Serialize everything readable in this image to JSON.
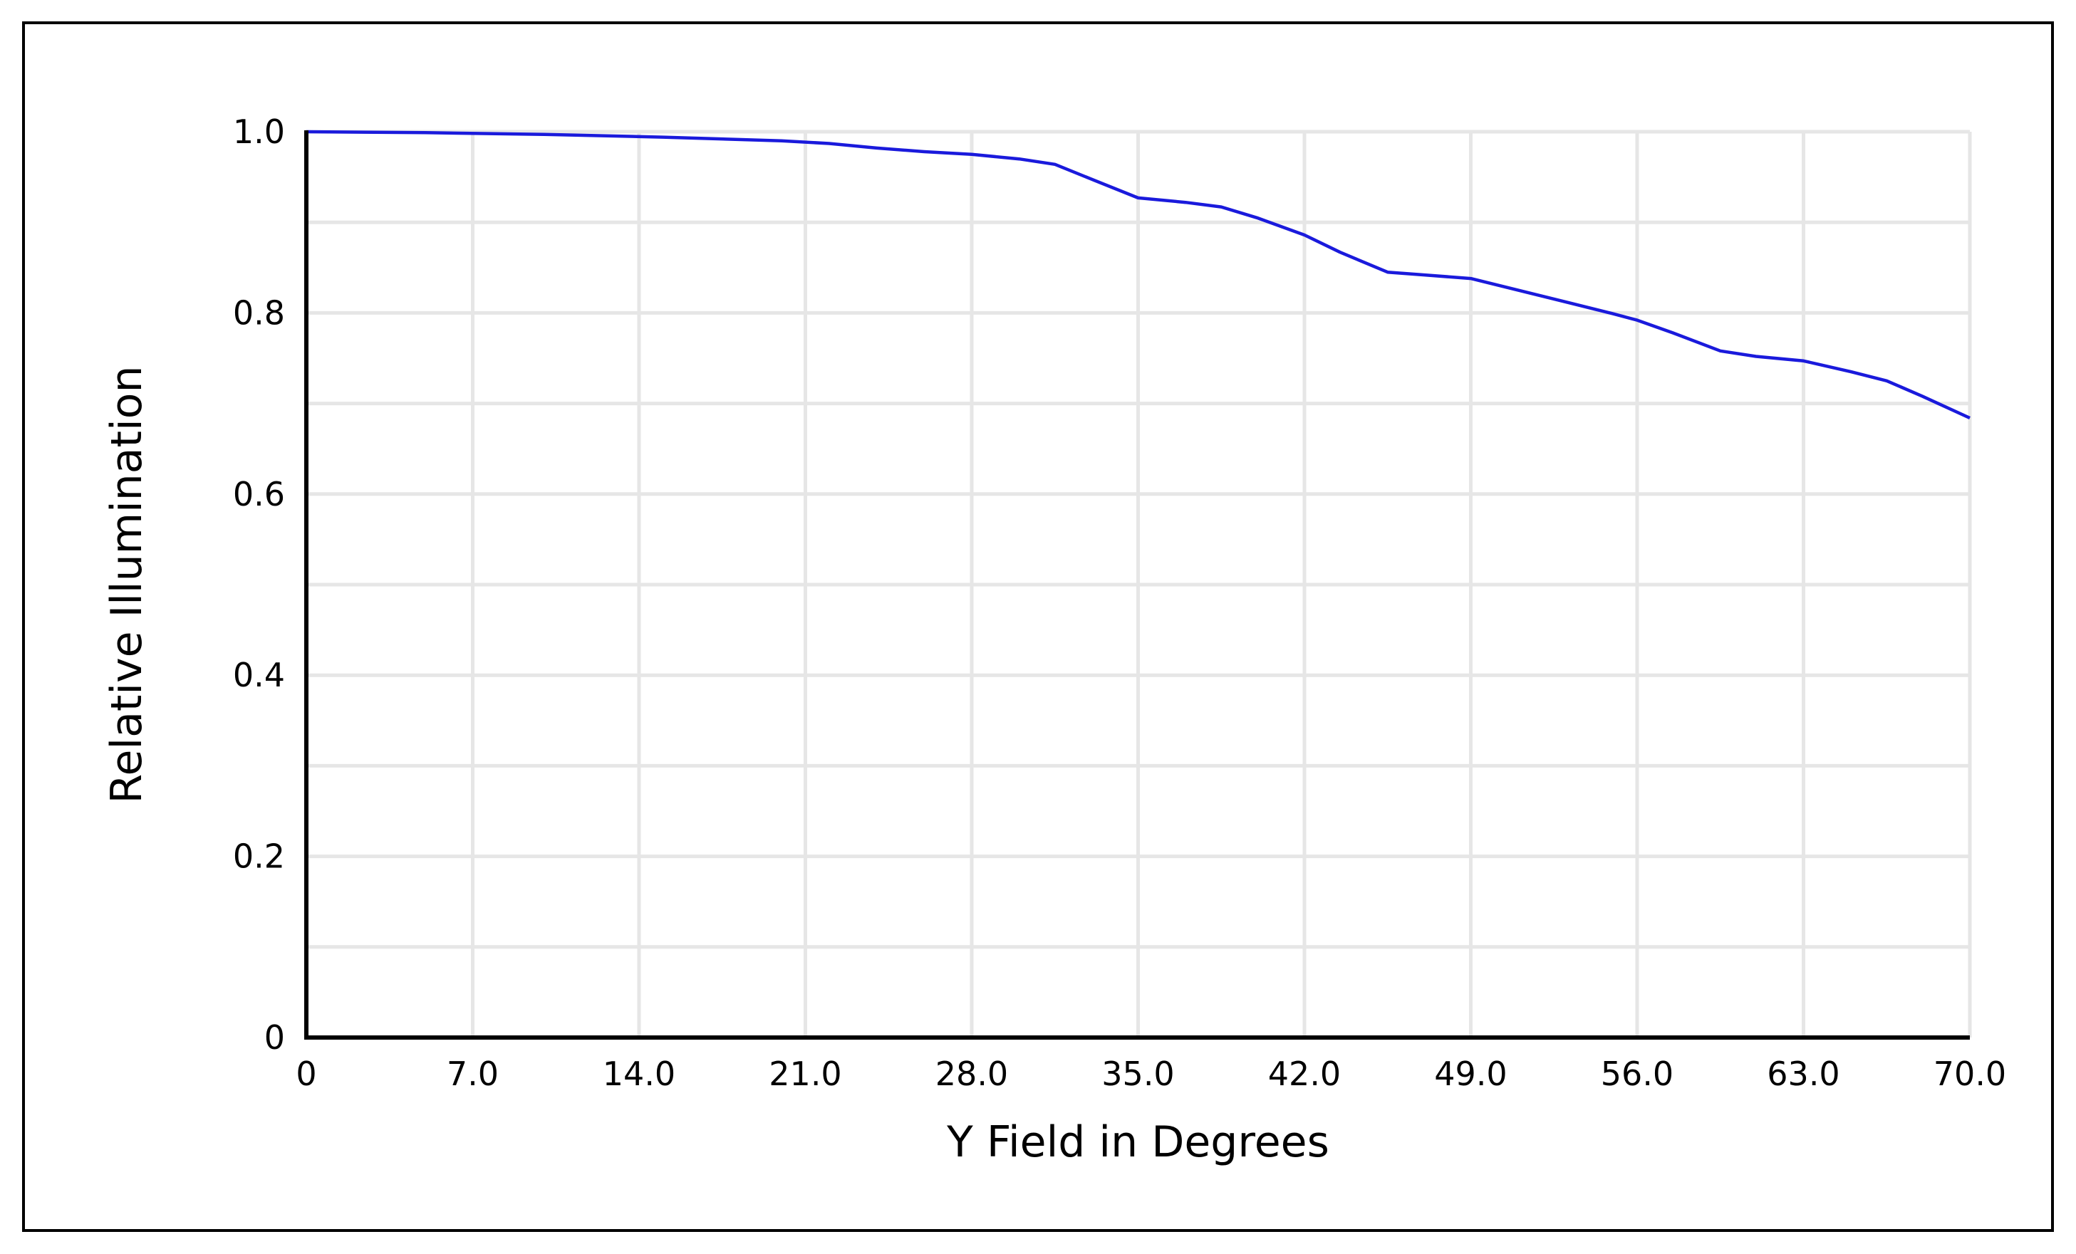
{
  "chart_data": {
    "type": "line",
    "title": "",
    "xlabel": "Y Field in Degrees",
    "ylabel": "Relative Illumination",
    "xlim": [
      0,
      70
    ],
    "ylim": [
      0,
      1.0
    ],
    "x_ticks": [
      0,
      7,
      14,
      21,
      28,
      35,
      42,
      49,
      56,
      63,
      70
    ],
    "x_tick_labels": [
      "0",
      "7.0",
      "14.0",
      "21.0",
      "28.0",
      "35.0",
      "42.0",
      "49.0",
      "56.0",
      "63.0",
      "70.0"
    ],
    "y_ticks": [
      0,
      0.2,
      0.4,
      0.6,
      0.8,
      1.0
    ],
    "y_tick_labels": [
      "0",
      "0.2",
      "0.4",
      "0.6",
      "0.8",
      "1.0"
    ],
    "y_minor_ticks": [
      0.1,
      0.3,
      0.5,
      0.7,
      0.9
    ],
    "grid": true,
    "legend": "none",
    "series": [
      {
        "color": "#1a1adc",
        "x": [
          0,
          5,
          10,
          15,
          20,
          22,
          24,
          26,
          28,
          30,
          31.5,
          33,
          35,
          37,
          38.5,
          40,
          42,
          43.5,
          45.5,
          47,
          49,
          51,
          53,
          55,
          56,
          57.5,
          59.5,
          61,
          63,
          65,
          66.5,
          68,
          70
        ],
        "y": [
          1.0,
          0.999,
          0.997,
          0.994,
          0.99,
          0.987,
          0.982,
          0.978,
          0.975,
          0.97,
          0.964,
          0.948,
          0.927,
          0.922,
          0.917,
          0.905,
          0.886,
          0.867,
          0.845,
          0.842,
          0.838,
          0.825,
          0.812,
          0.799,
          0.792,
          0.778,
          0.758,
          0.752,
          0.747,
          0.735,
          0.725,
          0.708,
          0.684
        ]
      }
    ]
  }
}
